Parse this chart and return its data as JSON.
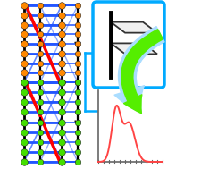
{
  "bg_color": "#ffffff",
  "blue_box_color": "#00aaff",
  "green_arrow_color": "#55ee00",
  "green_arrow_light": "#aaffcc",
  "curve_color": "#ff4444",
  "axis_color": "#666666",
  "orange_node_color": "#ff8800",
  "green_node_color": "#44dd00",
  "blue_line_color": "#2255ff",
  "black_color": "#000000",
  "red_color": "#ff0000"
}
